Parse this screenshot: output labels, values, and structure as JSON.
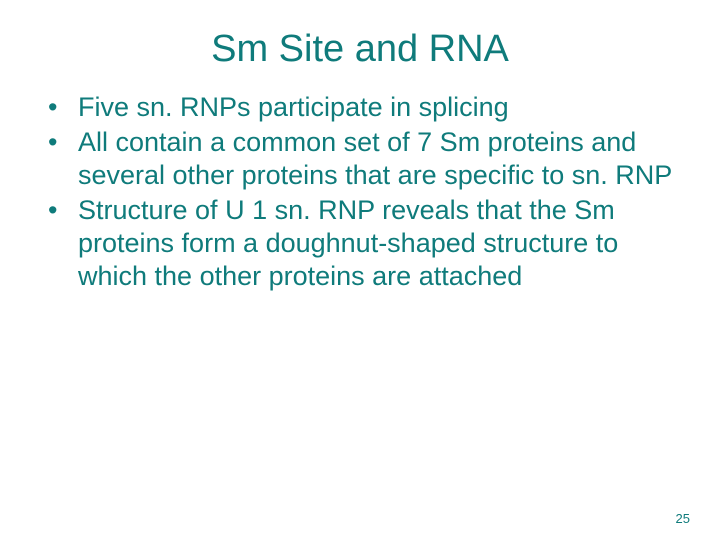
{
  "colors": {
    "title_color": "#0f7b7b",
    "body_color": "#0f7b7b",
    "bullet_color": "#0f7b7b",
    "page_number_color": "#0f7b7b",
    "background_color": "#ffffff"
  },
  "typography": {
    "title_fontsize": 38,
    "body_fontsize": 27,
    "page_number_fontsize": 13,
    "font_family": "Arial"
  },
  "title": "Sm Site and RNA",
  "bullets": [
    "Five sn. RNPs participate in splicing",
    "All contain a common set of 7 Sm proteins and several other proteins that are specific to sn. RNP",
    "Structure of U 1 sn. RNP reveals that the Sm proteins form a doughnut-shaped structure to which the other proteins are attached"
  ],
  "page_number": "25"
}
